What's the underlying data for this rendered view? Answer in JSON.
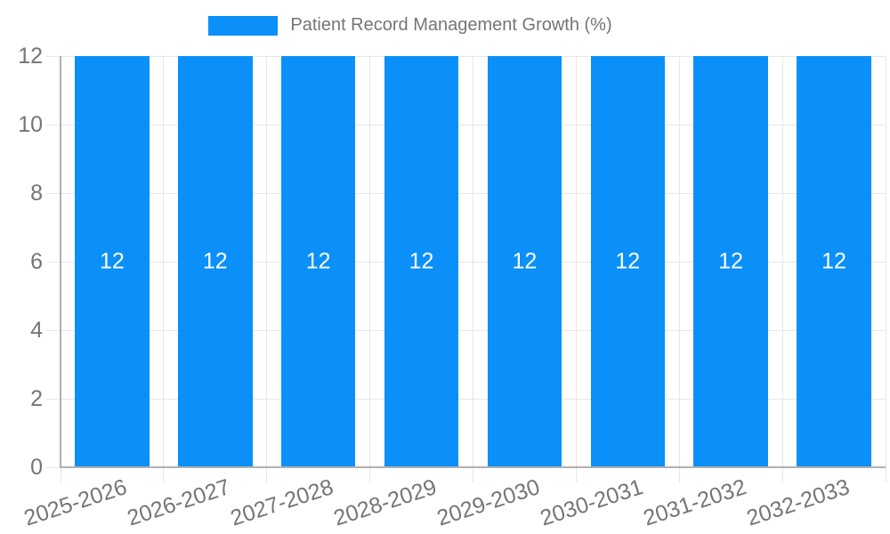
{
  "chart_data": {
    "type": "bar",
    "title": "Patient Record Management Growth (%)",
    "categories": [
      "2025-2026",
      "2026-2027",
      "2027-2028",
      "2028-2029",
      "2029-2030",
      "2030-2031",
      "2031-2032",
      "2032-2033"
    ],
    "series": [
      {
        "name": "Patient Record Management Growth (%)",
        "values": [
          12,
          12,
          12,
          12,
          12,
          12,
          12,
          12
        ]
      }
    ],
    "values": [
      12,
      12,
      12,
      12,
      12,
      12,
      12,
      12
    ],
    "bar_value_labels": [
      "12",
      "12",
      "12",
      "12",
      "12",
      "12",
      "12",
      "12"
    ],
    "xlabel": "",
    "ylabel": "",
    "ylim": [
      0,
      12
    ],
    "yticks": [
      0,
      2,
      4,
      6,
      8,
      10,
      12
    ],
    "grid": "on",
    "legend_position": "top",
    "colors": {
      "bar": "#0A90F8",
      "grid": "#E6E6E6",
      "axis": "#B0B0B0",
      "tick_text": "#757575",
      "title_text": "#757575",
      "bar_label_text": "#FFFFFF",
      "background": "#FFFFFF"
    }
  }
}
